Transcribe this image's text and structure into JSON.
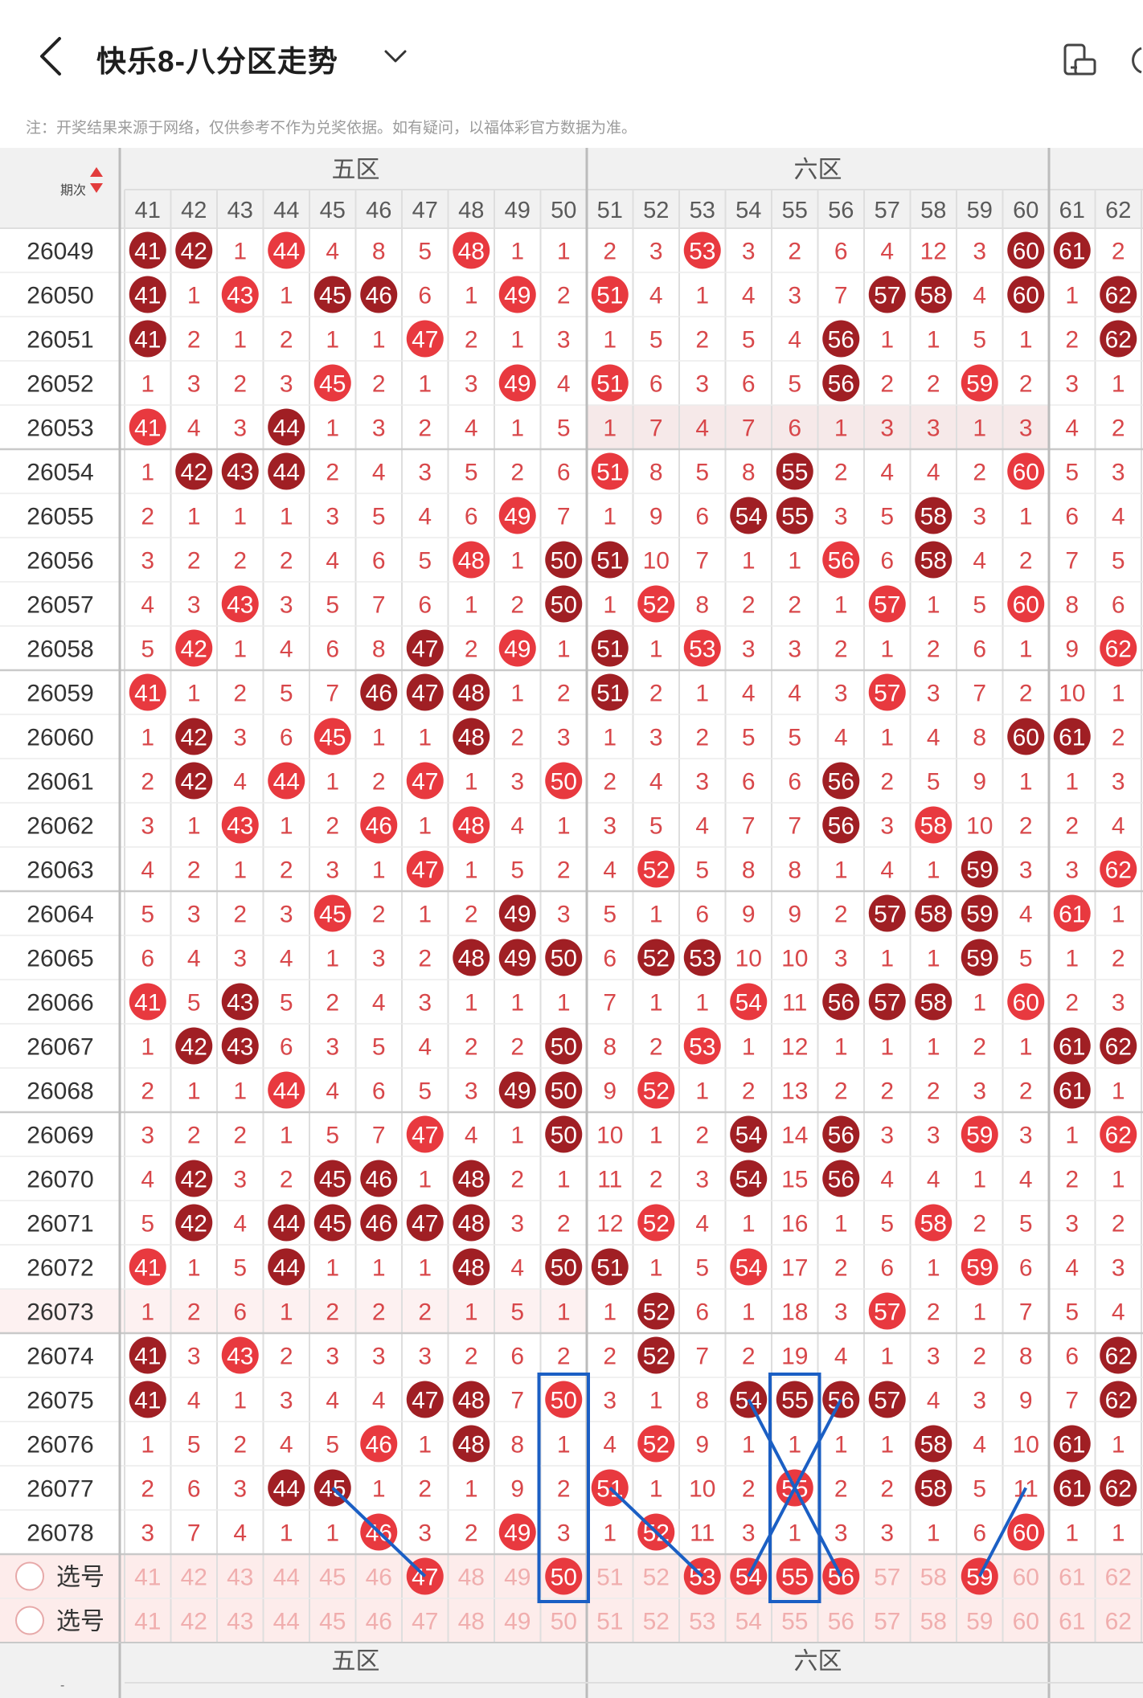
{
  "header": {
    "title": "快乐8-八分区走势",
    "back_icon": "chevron-left-icon",
    "dropdown_icon": "chevron-down-icon",
    "right_icon": "screen-rotate-icon"
  },
  "notice": "注：开奖结果来源于网络，仅供参考不作为兑奖依据。如有疑问，以福体彩官方数据为准。",
  "table": {
    "period_header": "期次",
    "sort_icon": "sort-updown-icon",
    "zones": [
      {
        "label": "五区"
      },
      {
        "label": "六区"
      }
    ],
    "columns": [
      "41",
      "42",
      "43",
      "44",
      "45",
      "46",
      "47",
      "48",
      "49",
      "50",
      "51",
      "52",
      "53",
      "54",
      "55",
      "56",
      "57",
      "58",
      "59",
      "60",
      "61",
      "62"
    ],
    "rows": [
      {
        "period": "26049",
        "cells": [
          "41",
          "42",
          "1",
          "44",
          "4",
          "8",
          "5",
          "48",
          "1",
          "1",
          "2",
          "3",
          "53",
          "3",
          "2",
          "6",
          "4",
          "12",
          "3",
          "60",
          "61",
          "2"
        ]
      },
      {
        "period": "26050",
        "cells": [
          "41",
          "1",
          "43",
          "1",
          "45",
          "46",
          "6",
          "1",
          "49",
          "2",
          "51",
          "4",
          "1",
          "4",
          "3",
          "7",
          "57",
          "58",
          "4",
          "60",
          "1",
          "62"
        ]
      },
      {
        "period": "26051",
        "cells": [
          "41",
          "2",
          "1",
          "2",
          "1",
          "1",
          "47",
          "2",
          "1",
          "3",
          "1",
          "5",
          "2",
          "5",
          "4",
          "56",
          "1",
          "1",
          "5",
          "1",
          "2",
          "62"
        ]
      },
      {
        "period": "26052",
        "cells": [
          "1",
          "3",
          "2",
          "3",
          "45",
          "2",
          "1",
          "3",
          "49",
          "4",
          "51",
          "6",
          "3",
          "6",
          "5",
          "56",
          "2",
          "2",
          "59",
          "2",
          "3",
          "1"
        ]
      },
      {
        "period": "26053",
        "cells": [
          "41",
          "4",
          "3",
          "44",
          "1",
          "3",
          "2",
          "4",
          "1",
          "5",
          "1",
          "7",
          "4",
          "7",
          "6",
          "1",
          "3",
          "3",
          "1",
          "3",
          "4",
          "2"
        ]
      },
      {
        "period": "26054",
        "cells": [
          "1",
          "42",
          "43",
          "44",
          "2",
          "4",
          "3",
          "5",
          "2",
          "6",
          "51",
          "8",
          "5",
          "8",
          "55",
          "2",
          "4",
          "4",
          "2",
          "60",
          "5",
          "3"
        ]
      },
      {
        "period": "26055",
        "cells": [
          "2",
          "1",
          "1",
          "1",
          "3",
          "5",
          "4",
          "6",
          "49",
          "7",
          "1",
          "9",
          "6",
          "54",
          "55",
          "3",
          "5",
          "58",
          "3",
          "1",
          "6",
          "4"
        ]
      },
      {
        "period": "26056",
        "cells": [
          "3",
          "2",
          "2",
          "2",
          "4",
          "6",
          "5",
          "48",
          "1",
          "50",
          "51",
          "10",
          "7",
          "1",
          "1",
          "56",
          "6",
          "58",
          "4",
          "2",
          "7",
          "5"
        ]
      },
      {
        "period": "26057",
        "cells": [
          "4",
          "3",
          "43",
          "3",
          "5",
          "7",
          "6",
          "1",
          "2",
          "50",
          "1",
          "52",
          "8",
          "2",
          "2",
          "1",
          "57",
          "1",
          "5",
          "60",
          "8",
          "6"
        ]
      },
      {
        "period": "26058",
        "cells": [
          "5",
          "42",
          "1",
          "4",
          "6",
          "8",
          "47",
          "2",
          "49",
          "1",
          "51",
          "1",
          "53",
          "3",
          "3",
          "2",
          "1",
          "2",
          "6",
          "1",
          "9",
          "62"
        ]
      },
      {
        "period": "26059",
        "cells": [
          "41",
          "1",
          "2",
          "5",
          "7",
          "46",
          "47",
          "48",
          "1",
          "2",
          "51",
          "2",
          "1",
          "4",
          "4",
          "3",
          "57",
          "3",
          "7",
          "2",
          "10",
          "1"
        ]
      },
      {
        "period": "26060",
        "cells": [
          "1",
          "42",
          "3",
          "6",
          "45",
          "1",
          "1",
          "48",
          "2",
          "3",
          "1",
          "3",
          "2",
          "5",
          "5",
          "4",
          "1",
          "4",
          "8",
          "60",
          "61",
          "2"
        ]
      },
      {
        "period": "26061",
        "cells": [
          "2",
          "42",
          "4",
          "44",
          "1",
          "2",
          "47",
          "1",
          "3",
          "50",
          "2",
          "4",
          "3",
          "6",
          "6",
          "56",
          "2",
          "5",
          "9",
          "1",
          "1",
          "3"
        ]
      },
      {
        "period": "26062",
        "cells": [
          "3",
          "1",
          "43",
          "1",
          "2",
          "46",
          "1",
          "48",
          "4",
          "1",
          "3",
          "5",
          "4",
          "7",
          "7",
          "56",
          "3",
          "58",
          "10",
          "2",
          "2",
          "4"
        ]
      },
      {
        "period": "26063",
        "cells": [
          "4",
          "2",
          "1",
          "2",
          "3",
          "1",
          "47",
          "1",
          "5",
          "2",
          "4",
          "52",
          "5",
          "8",
          "8",
          "1",
          "4",
          "1",
          "59",
          "3",
          "3",
          "62"
        ]
      },
      {
        "period": "26064",
        "cells": [
          "5",
          "3",
          "2",
          "3",
          "45",
          "2",
          "1",
          "2",
          "49",
          "3",
          "5",
          "1",
          "6",
          "9",
          "9",
          "2",
          "57",
          "58",
          "59",
          "4",
          "61",
          "1"
        ]
      },
      {
        "period": "26065",
        "cells": [
          "6",
          "4",
          "3",
          "4",
          "1",
          "3",
          "2",
          "48",
          "49",
          "50",
          "6",
          "52",
          "53",
          "10",
          "10",
          "3",
          "1",
          "1",
          "59",
          "5",
          "1",
          "2"
        ]
      },
      {
        "period": "26066",
        "cells": [
          "41",
          "5",
          "43",
          "5",
          "2",
          "4",
          "3",
          "1",
          "1",
          "1",
          "7",
          "1",
          "1",
          "54",
          "11",
          "56",
          "57",
          "58",
          "1",
          "60",
          "2",
          "3"
        ]
      },
      {
        "period": "26067",
        "cells": [
          "1",
          "42",
          "43",
          "6",
          "3",
          "5",
          "4",
          "2",
          "2",
          "50",
          "8",
          "2",
          "53",
          "1",
          "12",
          "1",
          "1",
          "1",
          "2",
          "1",
          "61",
          "62"
        ]
      },
      {
        "period": "26068",
        "cells": [
          "2",
          "1",
          "1",
          "44",
          "4",
          "6",
          "5",
          "3",
          "49",
          "50",
          "9",
          "52",
          "1",
          "2",
          "13",
          "2",
          "2",
          "2",
          "3",
          "2",
          "61",
          "1"
        ]
      },
      {
        "period": "26069",
        "cells": [
          "3",
          "2",
          "2",
          "1",
          "5",
          "7",
          "47",
          "4",
          "1",
          "50",
          "10",
          "1",
          "2",
          "54",
          "14",
          "56",
          "3",
          "3",
          "59",
          "3",
          "1",
          "62"
        ]
      },
      {
        "period": "26070",
        "cells": [
          "4",
          "42",
          "3",
          "2",
          "45",
          "46",
          "1",
          "48",
          "2",
          "1",
          "11",
          "2",
          "3",
          "54",
          "15",
          "56",
          "4",
          "4",
          "1",
          "4",
          "2",
          "1"
        ]
      },
      {
        "period": "26071",
        "cells": [
          "5",
          "42",
          "4",
          "44",
          "45",
          "46",
          "47",
          "48",
          "3",
          "2",
          "12",
          "52",
          "4",
          "1",
          "16",
          "1",
          "5",
          "58",
          "2",
          "5",
          "3",
          "2"
        ]
      },
      {
        "period": "26072",
        "cells": [
          "41",
          "1",
          "5",
          "44",
          "1",
          "1",
          "1",
          "48",
          "4",
          "50",
          "51",
          "1",
          "5",
          "54",
          "17",
          "2",
          "6",
          "1",
          "59",
          "6",
          "4",
          "3"
        ]
      },
      {
        "period": "26073",
        "cells": [
          "1",
          "2",
          "6",
          "1",
          "2",
          "2",
          "2",
          "1",
          "5",
          "1",
          "1",
          "52",
          "6",
          "1",
          "18",
          "3",
          "57",
          "2",
          "1",
          "7",
          "5",
          "4"
        ]
      },
      {
        "period": "26074",
        "cells": [
          "41",
          "3",
          "43",
          "2",
          "3",
          "3",
          "3",
          "2",
          "6",
          "2",
          "2",
          "52",
          "7",
          "2",
          "19",
          "4",
          "1",
          "3",
          "2",
          "8",
          "6",
          "62"
        ]
      },
      {
        "period": "26075",
        "cells": [
          "41",
          "4",
          "1",
          "3",
          "4",
          "4",
          "47",
          "48",
          "7",
          "50",
          "3",
          "1",
          "8",
          "54",
          "55",
          "56",
          "57",
          "4",
          "3",
          "9",
          "7",
          "62"
        ]
      },
      {
        "period": "26076",
        "cells": [
          "1",
          "5",
          "2",
          "4",
          "5",
          "46",
          "1",
          "48",
          "8",
          "1",
          "4",
          "52",
          "9",
          "1",
          "1",
          "1",
          "1",
          "58",
          "4",
          "10",
          "61",
          "1"
        ]
      },
      {
        "period": "26077",
        "cells": [
          "2",
          "6",
          "3",
          "44",
          "45",
          "1",
          "2",
          "1",
          "9",
          "2",
          "51",
          "1",
          "10",
          "2",
          "55",
          "2",
          "2",
          "58",
          "5",
          "11",
          "61",
          "62"
        ]
      },
      {
        "period": "26078",
        "cells": [
          "3",
          "7",
          "4",
          "1",
          "1",
          "46",
          "3",
          "2",
          "49",
          "3",
          "1",
          "52",
          "11",
          "3",
          "1",
          "3",
          "3",
          "1",
          "6",
          "60",
          "1",
          "1"
        ]
      }
    ],
    "select_rows": [
      {
        "label": "选号",
        "selected": [
          "47",
          "50",
          "53",
          "54",
          "55",
          "56",
          "59"
        ]
      },
      {
        "label": "选号",
        "selected": []
      }
    ],
    "footer_period": "-",
    "footer_zones": [
      {
        "label": "五区"
      },
      {
        "label": "六区"
      }
    ]
  },
  "colors": {
    "ball_red": "#e8393f",
    "ball_dark": "#a01f24",
    "miss_text": "#d8474a",
    "grid_line": "#dedede",
    "zone_divider": "#bcbcbc",
    "header_bg": "#f1f1f1",
    "select_bg": "#fdeceb",
    "annotation_blue": "#1b5fc4"
  }
}
